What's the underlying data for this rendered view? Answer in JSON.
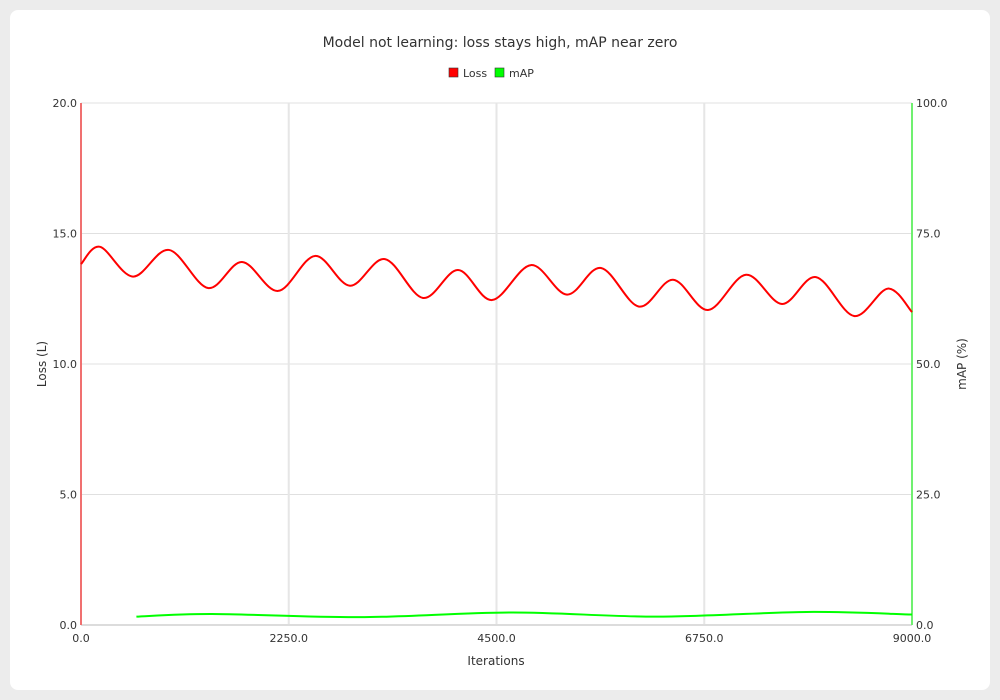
{
  "chart_data": {
    "type": "line",
    "title": "Model not learning: loss stays high, mAP near zero",
    "xlabel": "Iterations",
    "ylabel_left": "Loss (L)",
    "ylabel_right": "mAP (%)",
    "xlim": [
      0,
      9000
    ],
    "ylim_left": [
      0,
      20
    ],
    "ylim_right": [
      0,
      100
    ],
    "x_ticks": [
      "0.0",
      "2250.0",
      "4500.0",
      "6750.0",
      "9000.0"
    ],
    "y_ticks_left": [
      "0.0",
      "5.0",
      "10.0",
      "15.0",
      "20.0"
    ],
    "y_ticks_right": [
      "0.0",
      "25.0",
      "50.0",
      "75.0",
      "100.0"
    ],
    "grid": true,
    "legend_position": "top",
    "series": [
      {
        "name": "Loss",
        "axis": "left",
        "color": "#ff0000",
        "x": [
          0,
          206,
          563,
          953,
          1375,
          1744,
          2134,
          2534,
          2913,
          3292,
          3704,
          4083,
          4451,
          4874,
          5264,
          5632,
          6043,
          6412,
          6791,
          7202,
          7592,
          7960,
          8372,
          8740,
          9000
        ],
        "y": [
          13.83,
          14.49,
          13.35,
          14.37,
          12.91,
          13.91,
          12.8,
          14.14,
          13.0,
          14.02,
          12.53,
          13.6,
          12.45,
          13.79,
          12.66,
          13.68,
          12.2,
          13.23,
          12.07,
          13.42,
          12.3,
          13.33,
          11.84,
          12.89,
          11.99
        ]
      },
      {
        "name": "mAP",
        "axis": "right",
        "color": "#00ff00",
        "x": [
          600,
          1420,
          3020,
          4660,
          6230,
          7860,
          9000
        ],
        "y": [
          1.6,
          2.1,
          1.5,
          2.4,
          1.6,
          2.5,
          2.0
        ]
      }
    ]
  }
}
